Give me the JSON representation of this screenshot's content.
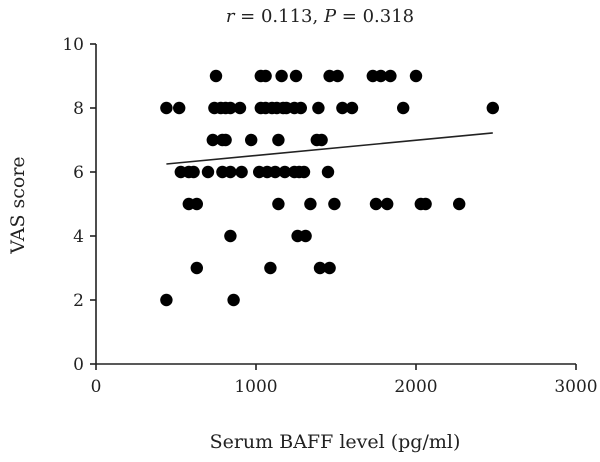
{
  "chart_data": {
    "type": "scatter",
    "title": "r = 0.113, P = 0.318",
    "title_parts": {
      "r_symbol": "r",
      "r_value": " = 0.113, ",
      "p_symbol": "P",
      "p_value": " = 0.318"
    },
    "xlabel": "Serum BAFF level (pg/ml)",
    "ylabel": "VAS score",
    "xlim": [
      0,
      3000
    ],
    "ylim": [
      0,
      10
    ],
    "xticks": [
      0,
      1000,
      2000,
      3000
    ],
    "yticks": [
      0,
      2,
      4,
      6,
      8,
      10
    ],
    "grid": false,
    "trendline": {
      "x": [
        440,
        2480
      ],
      "y": [
        6.25,
        7.22
      ]
    },
    "points": [
      {
        "x": 440,
        "y": 8
      },
      {
        "x": 520,
        "y": 8
      },
      {
        "x": 740,
        "y": 8
      },
      {
        "x": 780,
        "y": 8
      },
      {
        "x": 810,
        "y": 8
      },
      {
        "x": 840,
        "y": 8
      },
      {
        "x": 900,
        "y": 8
      },
      {
        "x": 1030,
        "y": 8
      },
      {
        "x": 1060,
        "y": 8
      },
      {
        "x": 1100,
        "y": 8
      },
      {
        "x": 1130,
        "y": 8
      },
      {
        "x": 1170,
        "y": 8
      },
      {
        "x": 1190,
        "y": 8
      },
      {
        "x": 1240,
        "y": 8
      },
      {
        "x": 1280,
        "y": 8
      },
      {
        "x": 1390,
        "y": 8
      },
      {
        "x": 1540,
        "y": 8
      },
      {
        "x": 1600,
        "y": 8
      },
      {
        "x": 1920,
        "y": 8
      },
      {
        "x": 2480,
        "y": 8
      },
      {
        "x": 750,
        "y": 9
      },
      {
        "x": 1030,
        "y": 9
      },
      {
        "x": 1060,
        "y": 9
      },
      {
        "x": 1160,
        "y": 9
      },
      {
        "x": 1250,
        "y": 9
      },
      {
        "x": 1460,
        "y": 9
      },
      {
        "x": 1510,
        "y": 9
      },
      {
        "x": 1730,
        "y": 9
      },
      {
        "x": 1780,
        "y": 9
      },
      {
        "x": 1840,
        "y": 9
      },
      {
        "x": 2000,
        "y": 9
      },
      {
        "x": 730,
        "y": 7
      },
      {
        "x": 790,
        "y": 7
      },
      {
        "x": 810,
        "y": 7
      },
      {
        "x": 970,
        "y": 7
      },
      {
        "x": 1140,
        "y": 7
      },
      {
        "x": 1380,
        "y": 7
      },
      {
        "x": 1410,
        "y": 7
      },
      {
        "x": 530,
        "y": 6
      },
      {
        "x": 580,
        "y": 6
      },
      {
        "x": 610,
        "y": 6
      },
      {
        "x": 700,
        "y": 6
      },
      {
        "x": 790,
        "y": 6
      },
      {
        "x": 840,
        "y": 6
      },
      {
        "x": 910,
        "y": 6
      },
      {
        "x": 1020,
        "y": 6
      },
      {
        "x": 1070,
        "y": 6
      },
      {
        "x": 1120,
        "y": 6
      },
      {
        "x": 1180,
        "y": 6
      },
      {
        "x": 1240,
        "y": 6
      },
      {
        "x": 1270,
        "y": 6
      },
      {
        "x": 1300,
        "y": 6
      },
      {
        "x": 1450,
        "y": 6
      },
      {
        "x": 580,
        "y": 5
      },
      {
        "x": 630,
        "y": 5
      },
      {
        "x": 1140,
        "y": 5
      },
      {
        "x": 1340,
        "y": 5
      },
      {
        "x": 1490,
        "y": 5
      },
      {
        "x": 1750,
        "y": 5
      },
      {
        "x": 1820,
        "y": 5
      },
      {
        "x": 2030,
        "y": 5
      },
      {
        "x": 2060,
        "y": 5
      },
      {
        "x": 2270,
        "y": 5
      },
      {
        "x": 840,
        "y": 4
      },
      {
        "x": 1260,
        "y": 4
      },
      {
        "x": 1310,
        "y": 4
      },
      {
        "x": 630,
        "y": 3
      },
      {
        "x": 1090,
        "y": 3
      },
      {
        "x": 1400,
        "y": 3
      },
      {
        "x": 1460,
        "y": 3
      },
      {
        "x": 440,
        "y": 2
      },
      {
        "x": 860,
        "y": 2
      }
    ]
  }
}
